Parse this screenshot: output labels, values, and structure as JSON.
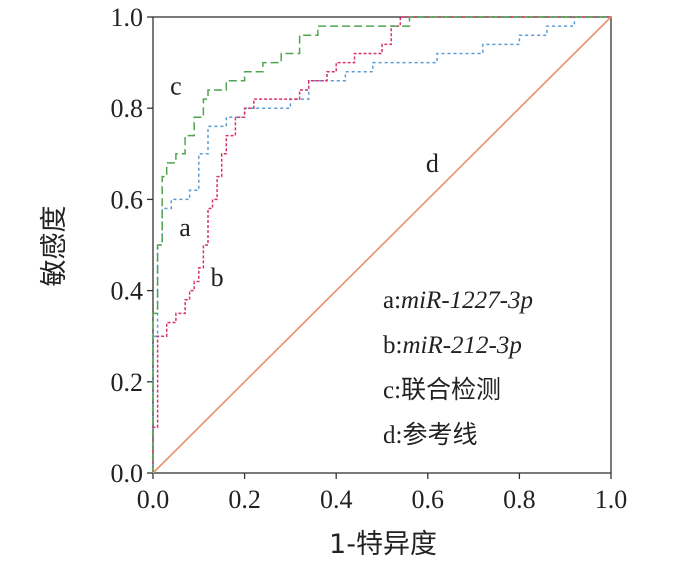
{
  "chart_data": {
    "type": "line",
    "xlabel": "1-特异度",
    "ylabel": "敏感度",
    "xlim": [
      0,
      1
    ],
    "ylim": [
      0,
      1
    ],
    "x_ticks": [
      "0.0",
      "0.2",
      "0.4",
      "0.6",
      "0.8",
      "1.0"
    ],
    "y_ticks": [
      "0.0",
      "0.2",
      "0.4",
      "0.6",
      "0.8",
      "1.0"
    ],
    "grid": false,
    "legend": [
      {
        "key": "a",
        "sep": ":",
        "desc": "miR-1227-3p",
        "italic": true
      },
      {
        "key": "b",
        "sep": ":",
        "desc": "miR-212-3p",
        "italic": true
      },
      {
        "key": "c",
        "sep": ":",
        "desc": "联合检测",
        "italic": false
      },
      {
        "key": "d",
        "sep": ":",
        "desc": "参考线",
        "italic": false
      }
    ],
    "series": [
      {
        "key": "a",
        "color": "#5b9bd5",
        "dash": "3,3",
        "points": [
          [
            0,
            0
          ],
          [
            0,
            0.3
          ],
          [
            0.01,
            0.3
          ],
          [
            0.01,
            0.5
          ],
          [
            0.02,
            0.5
          ],
          [
            0.02,
            0.58
          ],
          [
            0.04,
            0.58
          ],
          [
            0.04,
            0.6
          ],
          [
            0.08,
            0.6
          ],
          [
            0.08,
            0.62
          ],
          [
            0.1,
            0.62
          ],
          [
            0.1,
            0.7
          ],
          [
            0.12,
            0.7
          ],
          [
            0.12,
            0.76
          ],
          [
            0.16,
            0.76
          ],
          [
            0.16,
            0.78
          ],
          [
            0.2,
            0.78
          ],
          [
            0.2,
            0.8
          ],
          [
            0.3,
            0.8
          ],
          [
            0.3,
            0.82
          ],
          [
            0.34,
            0.82
          ],
          [
            0.34,
            0.86
          ],
          [
            0.42,
            0.86
          ],
          [
            0.42,
            0.88
          ],
          [
            0.48,
            0.88
          ],
          [
            0.48,
            0.9
          ],
          [
            0.62,
            0.9
          ],
          [
            0.62,
            0.92
          ],
          [
            0.72,
            0.92
          ],
          [
            0.72,
            0.94
          ],
          [
            0.8,
            0.94
          ],
          [
            0.8,
            0.96
          ],
          [
            0.86,
            0.96
          ],
          [
            0.86,
            0.98
          ],
          [
            0.92,
            0.98
          ],
          [
            0.92,
            1
          ],
          [
            1,
            1
          ]
        ]
      },
      {
        "key": "b",
        "color": "#d6336c",
        "dash": "3,2",
        "points": [
          [
            0,
            0
          ],
          [
            0,
            0.1
          ],
          [
            0.01,
            0.1
          ],
          [
            0.01,
            0.3
          ],
          [
            0.03,
            0.3
          ],
          [
            0.03,
            0.33
          ],
          [
            0.05,
            0.33
          ],
          [
            0.05,
            0.35
          ],
          [
            0.07,
            0.35
          ],
          [
            0.07,
            0.38
          ],
          [
            0.08,
            0.38
          ],
          [
            0.08,
            0.4
          ],
          [
            0.09,
            0.4
          ],
          [
            0.09,
            0.42
          ],
          [
            0.1,
            0.42
          ],
          [
            0.1,
            0.45
          ],
          [
            0.11,
            0.45
          ],
          [
            0.11,
            0.5
          ],
          [
            0.12,
            0.5
          ],
          [
            0.12,
            0.58
          ],
          [
            0.13,
            0.58
          ],
          [
            0.13,
            0.6
          ],
          [
            0.14,
            0.6
          ],
          [
            0.14,
            0.65
          ],
          [
            0.15,
            0.65
          ],
          [
            0.15,
            0.7
          ],
          [
            0.16,
            0.7
          ],
          [
            0.16,
            0.74
          ],
          [
            0.18,
            0.74
          ],
          [
            0.18,
            0.78
          ],
          [
            0.2,
            0.78
          ],
          [
            0.2,
            0.8
          ],
          [
            0.22,
            0.8
          ],
          [
            0.22,
            0.82
          ],
          [
            0.32,
            0.82
          ],
          [
            0.32,
            0.84
          ],
          [
            0.34,
            0.84
          ],
          [
            0.34,
            0.86
          ],
          [
            0.38,
            0.86
          ],
          [
            0.38,
            0.88
          ],
          [
            0.4,
            0.88
          ],
          [
            0.4,
            0.9
          ],
          [
            0.44,
            0.9
          ],
          [
            0.44,
            0.92
          ],
          [
            0.5,
            0.92
          ],
          [
            0.5,
            0.94
          ],
          [
            0.52,
            0.94
          ],
          [
            0.52,
            0.98
          ],
          [
            0.54,
            0.98
          ],
          [
            0.54,
            1
          ],
          [
            1,
            1
          ]
        ]
      },
      {
        "key": "c",
        "color": "#4fa44f",
        "dash": "8,4",
        "points": [
          [
            0,
            0
          ],
          [
            0,
            0.35
          ],
          [
            0.01,
            0.35
          ],
          [
            0.01,
            0.5
          ],
          [
            0.02,
            0.5
          ],
          [
            0.02,
            0.65
          ],
          [
            0.03,
            0.65
          ],
          [
            0.03,
            0.68
          ],
          [
            0.05,
            0.68
          ],
          [
            0.05,
            0.7
          ],
          [
            0.07,
            0.7
          ],
          [
            0.07,
            0.74
          ],
          [
            0.09,
            0.74
          ],
          [
            0.09,
            0.78
          ],
          [
            0.11,
            0.78
          ],
          [
            0.11,
            0.82
          ],
          [
            0.12,
            0.82
          ],
          [
            0.12,
            0.84
          ],
          [
            0.16,
            0.84
          ],
          [
            0.16,
            0.86
          ],
          [
            0.2,
            0.86
          ],
          [
            0.2,
            0.88
          ],
          [
            0.24,
            0.88
          ],
          [
            0.24,
            0.9
          ],
          [
            0.28,
            0.9
          ],
          [
            0.28,
            0.92
          ],
          [
            0.32,
            0.92
          ],
          [
            0.32,
            0.96
          ],
          [
            0.36,
            0.96
          ],
          [
            0.36,
            0.98
          ],
          [
            0.56,
            0.98
          ],
          [
            0.56,
            1
          ],
          [
            1,
            1
          ]
        ]
      },
      {
        "key": "d",
        "color": "#e8916b",
        "dash": "",
        "points": [
          [
            0,
            0
          ],
          [
            1,
            1
          ]
        ]
      }
    ],
    "curve_labels": [
      {
        "key": "c",
        "text": "c",
        "x": 0.05,
        "y": 0.83
      },
      {
        "key": "d",
        "text": "d",
        "x": 0.61,
        "y": 0.66
      },
      {
        "key": "a",
        "text": "a",
        "x": 0.07,
        "y": 0.52
      },
      {
        "key": "b",
        "text": "b",
        "x": 0.14,
        "y": 0.41
      }
    ]
  }
}
